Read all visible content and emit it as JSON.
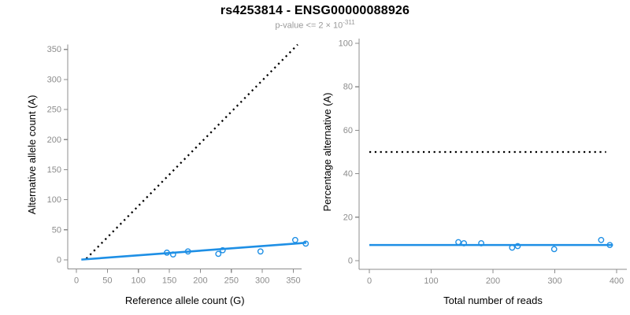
{
  "figure": {
    "title": "rs4253814 - ENSG00000088926",
    "subtitle": {
      "text": "p-value <= 2 × 10",
      "exponent": "-311"
    }
  },
  "colors": {
    "accent_blue": "#1E8FE5",
    "reference_line": "#000000",
    "axis_line": "#8C8C8C",
    "tick_label": "#8C8C8C",
    "axis_label": "#000000",
    "subtitle": "#999999",
    "background": "#FFFFFF"
  },
  "chart_data": [
    {
      "name": "allele-counts",
      "type": "scatter",
      "xlabel": "Reference allele count (G)",
      "ylabel": "Alternative allele count (A)",
      "xlim": [
        0,
        350
      ],
      "ylim": [
        0,
        350
      ],
      "xticks": [
        0,
        50,
        100,
        150,
        200,
        250,
        300,
        350
      ],
      "yticks": [
        0,
        50,
        100,
        150,
        200,
        250,
        300,
        350
      ],
      "grid": false,
      "legend": null,
      "points": [
        [
          146,
          12
        ],
        [
          156,
          9
        ],
        [
          180,
          14
        ],
        [
          229,
          10
        ],
        [
          236,
          16
        ],
        [
          297,
          14
        ],
        [
          353,
          33
        ],
        [
          370,
          27
        ]
      ],
      "lines": [
        {
          "name": "identity-line",
          "style": "dotted",
          "color": "#000000",
          "x1": 16,
          "y1": 2,
          "x2": 357,
          "y2": 358
        },
        {
          "name": "fit-line",
          "style": "solid",
          "color": "#1E8FE5",
          "x1": 8,
          "y1": 0.5,
          "x2": 371,
          "y2": 28.5
        }
      ]
    },
    {
      "name": "percentage",
      "type": "scatter",
      "xlabel": "Total number of reads",
      "ylabel": "Percentage alternative (A)",
      "xlim": [
        0,
        400
      ],
      "ylim": [
        0,
        100
      ],
      "xticks": [
        0,
        100,
        200,
        300,
        400
      ],
      "yticks": [
        0,
        20,
        40,
        60,
        80,
        100
      ],
      "grid": false,
      "legend": null,
      "points": [
        [
          144,
          8.5
        ],
        [
          153,
          8
        ],
        [
          181,
          8
        ],
        [
          231,
          6
        ],
        [
          240,
          6.7
        ],
        [
          299,
          5.3
        ],
        [
          375,
          9.5
        ],
        [
          389,
          7.2
        ]
      ],
      "lines": [
        {
          "name": "fifty-percent-line",
          "style": "dotted",
          "color": "#000000",
          "x1": 0,
          "y1": 50,
          "x2": 383,
          "y2": 50
        },
        {
          "name": "fit-line",
          "style": "solid",
          "color": "#1E8FE5",
          "x1": 0,
          "y1": 7.2,
          "x2": 394,
          "y2": 7.2
        }
      ]
    }
  ]
}
